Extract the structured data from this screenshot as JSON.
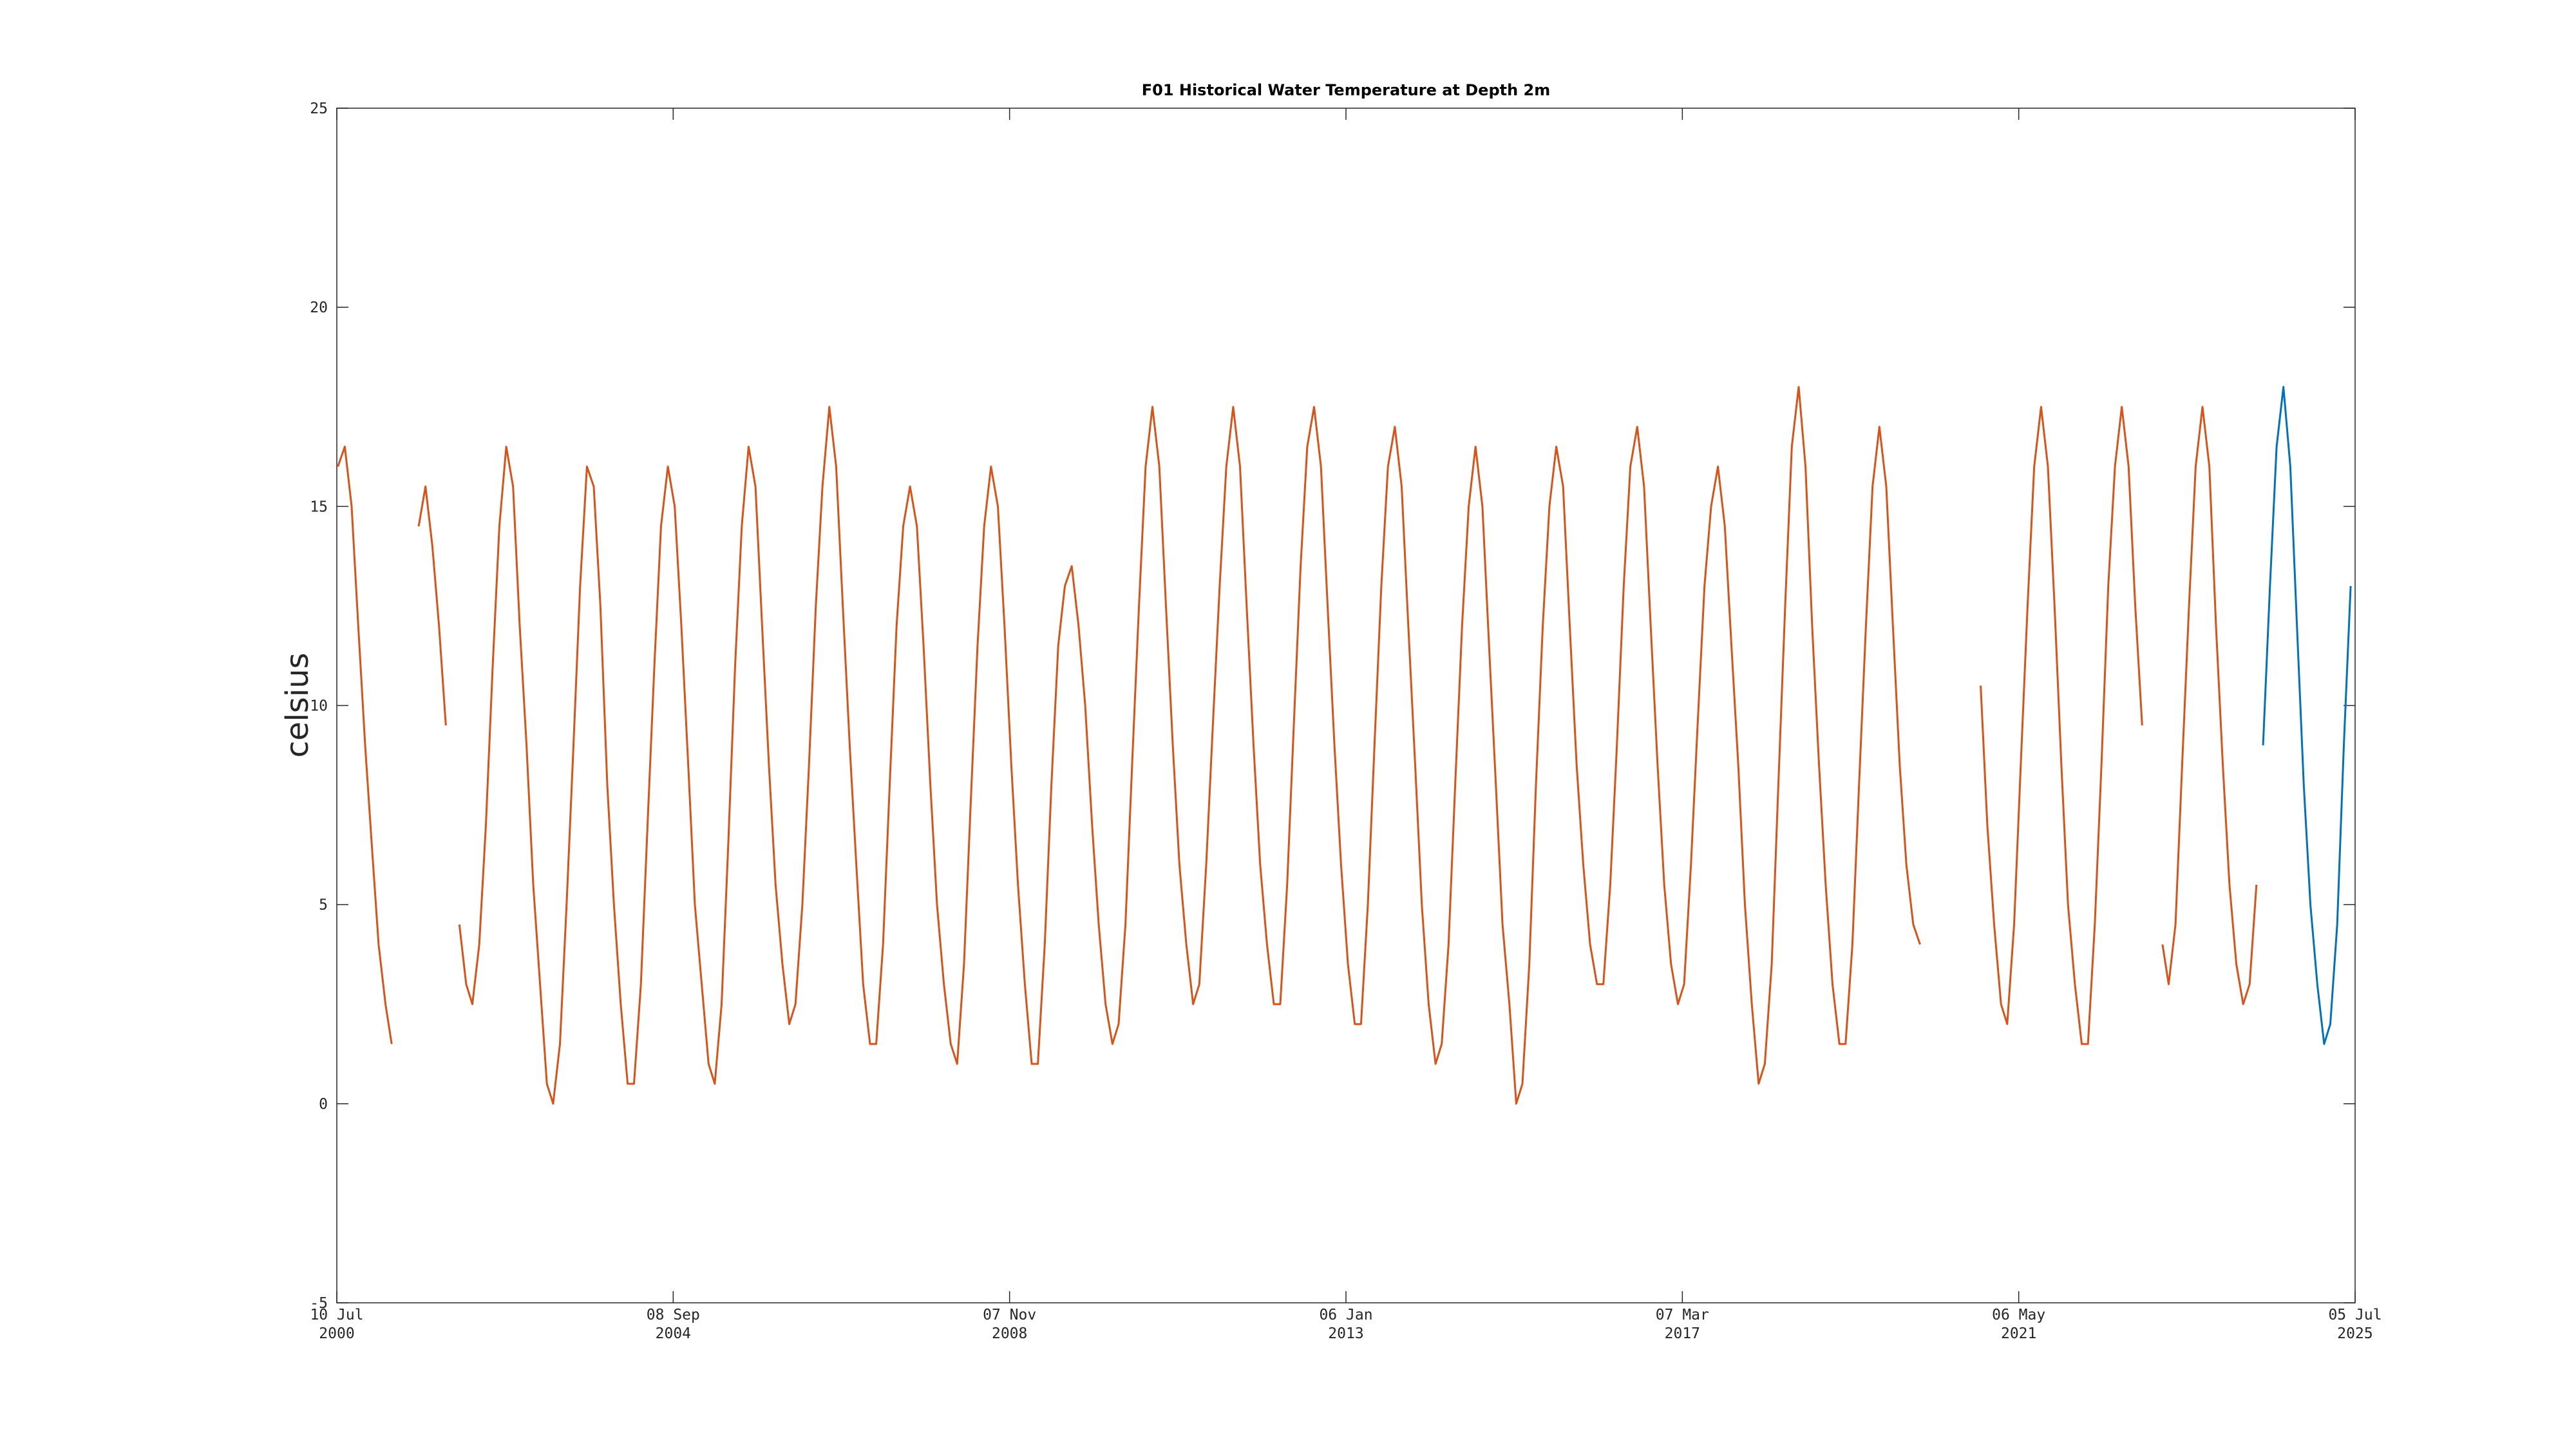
{
  "chart_data": {
    "type": "line",
    "title": "F01 Historical Water Temperature at Depth 2m",
    "ylabel": "celsius",
    "x": [
      "2000-07-15",
      "2000-08-15",
      "2000-09-15",
      "2000-10-15",
      "2000-11-15",
      "2000-12-15",
      "2001-01-15",
      "2001-02-15",
      "2001-03-15",
      "2001-04-15",
      "2001-05-15",
      "2001-06-15",
      "2001-07-15",
      "2001-08-15",
      "2001-09-15",
      "2001-10-15",
      "2001-11-15",
      "2001-12-15",
      "2002-01-15",
      "2002-02-15",
      "2002-03-15",
      "2002-04-15",
      "2002-05-15",
      "2002-06-15",
      "2002-07-15",
      "2002-08-15",
      "2002-09-15",
      "2002-10-15",
      "2002-11-15",
      "2002-12-15",
      "2003-01-15",
      "2003-02-15",
      "2003-03-15",
      "2003-04-15",
      "2003-05-15",
      "2003-06-15",
      "2003-07-15",
      "2003-08-15",
      "2003-09-15",
      "2003-10-15",
      "2003-11-15",
      "2003-12-15",
      "2004-01-15",
      "2004-02-15",
      "2004-03-15",
      "2004-04-15",
      "2004-05-15",
      "2004-06-15",
      "2004-07-15",
      "2004-08-15",
      "2004-09-15",
      "2004-10-15",
      "2004-11-15",
      "2004-12-15",
      "2005-01-15",
      "2005-02-15",
      "2005-03-15",
      "2005-04-15",
      "2005-05-15",
      "2005-06-15",
      "2005-07-15",
      "2005-08-15",
      "2005-09-15",
      "2005-10-15",
      "2005-11-15",
      "2005-12-15",
      "2006-01-15",
      "2006-02-15",
      "2006-03-15",
      "2006-04-15",
      "2006-05-15",
      "2006-06-15",
      "2006-07-15",
      "2006-08-15",
      "2006-09-15",
      "2006-10-15",
      "2006-11-15",
      "2006-12-15",
      "2007-01-15",
      "2007-02-15",
      "2007-03-15",
      "2007-04-15",
      "2007-05-15",
      "2007-06-15",
      "2007-07-15",
      "2007-08-15",
      "2007-09-15",
      "2007-10-15",
      "2007-11-15",
      "2007-12-15",
      "2008-01-15",
      "2008-02-15",
      "2008-03-15",
      "2008-04-15",
      "2008-05-15",
      "2008-06-15",
      "2008-07-15",
      "2008-08-15",
      "2008-09-15",
      "2008-10-15",
      "2008-11-15",
      "2008-12-15",
      "2009-01-15",
      "2009-02-15",
      "2009-03-15",
      "2009-04-15",
      "2009-05-15",
      "2009-06-15",
      "2009-07-15",
      "2009-08-15",
      "2009-09-15",
      "2009-10-15",
      "2009-11-15",
      "2009-12-15",
      "2010-01-15",
      "2010-02-15",
      "2010-03-15",
      "2010-04-15",
      "2010-05-15",
      "2010-06-15",
      "2010-07-15",
      "2010-08-15",
      "2010-09-15",
      "2010-10-15",
      "2010-11-15",
      "2010-12-15",
      "2011-01-15",
      "2011-02-15",
      "2011-03-15",
      "2011-04-15",
      "2011-05-15",
      "2011-06-15",
      "2011-07-15",
      "2011-08-15",
      "2011-09-15",
      "2011-10-15",
      "2011-11-15",
      "2011-12-15",
      "2012-01-15",
      "2012-02-15",
      "2012-03-15",
      "2012-04-15",
      "2012-05-15",
      "2012-06-15",
      "2012-07-15",
      "2012-08-15",
      "2012-09-15",
      "2012-10-15",
      "2012-11-15",
      "2012-12-15",
      "2013-01-15",
      "2013-02-15",
      "2013-03-15",
      "2013-04-15",
      "2013-05-15",
      "2013-06-15",
      "2013-07-15",
      "2013-08-15",
      "2013-09-15",
      "2013-10-15",
      "2013-11-15",
      "2013-12-15",
      "2014-01-15",
      "2014-02-15",
      "2014-03-15",
      "2014-04-15",
      "2014-05-15",
      "2014-06-15",
      "2014-07-15",
      "2014-08-15",
      "2014-09-15",
      "2014-10-15",
      "2014-11-15",
      "2014-12-15",
      "2015-01-15",
      "2015-02-15",
      "2015-03-15",
      "2015-04-15",
      "2015-05-15",
      "2015-06-15",
      "2015-07-15",
      "2015-08-15",
      "2015-09-15",
      "2015-10-15",
      "2015-11-15",
      "2015-12-15",
      "2016-01-15",
      "2016-02-15",
      "2016-03-15",
      "2016-04-15",
      "2016-05-15",
      "2016-06-15",
      "2016-07-15",
      "2016-08-15",
      "2016-09-15",
      "2016-10-15",
      "2016-11-15",
      "2016-12-15",
      "2017-01-15",
      "2017-02-15",
      "2017-03-15",
      "2017-04-15",
      "2017-05-15",
      "2017-06-15",
      "2017-07-15",
      "2017-08-15",
      "2017-09-15",
      "2017-10-15",
      "2017-11-15",
      "2017-12-15",
      "2018-01-15",
      "2018-02-15",
      "2018-03-15",
      "2018-04-15",
      "2018-05-15",
      "2018-06-15",
      "2018-07-15",
      "2018-08-15",
      "2018-09-15",
      "2018-10-15",
      "2018-11-15",
      "2018-12-15",
      "2019-01-15",
      "2019-02-15",
      "2019-03-15",
      "2019-04-15",
      "2019-05-15",
      "2019-06-15",
      "2019-07-15",
      "2019-08-15",
      "2019-09-15",
      "2019-10-15",
      "2019-11-15",
      "2019-12-15",
      "2020-01-15",
      "2020-02-15",
      "2020-03-15",
      "2020-04-15",
      "2020-05-15",
      "2020-06-15",
      "2020-07-15",
      "2020-08-15",
      "2020-09-15",
      "2020-10-15",
      "2020-11-15",
      "2020-12-15",
      "2021-01-15",
      "2021-02-15",
      "2021-03-15",
      "2021-04-15",
      "2021-05-15",
      "2021-06-15",
      "2021-07-15",
      "2021-08-15",
      "2021-09-15",
      "2021-10-15",
      "2021-11-15",
      "2021-12-15",
      "2022-01-15",
      "2022-02-15",
      "2022-03-15",
      "2022-04-15",
      "2022-05-15",
      "2022-06-15",
      "2022-07-15",
      "2022-08-15",
      "2022-09-15",
      "2022-10-15",
      "2022-11-15",
      "2022-12-15",
      "2023-01-15",
      "2023-02-15",
      "2023-03-15",
      "2023-04-15",
      "2023-05-15",
      "2023-06-15",
      "2023-07-15",
      "2023-08-15",
      "2023-09-15",
      "2023-10-15",
      "2023-11-15",
      "2023-12-15",
      "2024-01-15",
      "2024-02-15",
      "2024-03-15",
      "2024-04-15",
      "2024-05-15",
      "2024-06-15",
      "2024-07-15",
      "2024-08-15",
      "2024-09-15",
      "2024-10-15",
      "2024-11-15",
      "2024-12-15",
      "2025-01-15",
      "2025-02-15",
      "2025-03-15",
      "2025-04-15",
      "2025-05-15",
      "2025-06-15"
    ],
    "series": [
      {
        "color": "#D95319",
        "values": [
          16,
          16.5,
          15,
          12,
          9,
          6.5,
          4,
          2.5,
          1.5,
          null,
          null,
          null,
          14.5,
          15.5,
          14,
          12,
          9.5,
          null,
          4.5,
          3,
          2.5,
          4,
          7,
          11,
          14.5,
          16.5,
          15.5,
          12,
          9,
          5.5,
          3,
          0.5,
          0,
          1.5,
          5,
          9,
          13,
          16,
          15.5,
          12.5,
          8,
          5,
          2.5,
          0.5,
          0.5,
          3,
          7,
          11,
          14.5,
          16,
          15,
          12,
          8.5,
          5,
          3,
          1,
          0.5,
          2.5,
          6.5,
          11,
          14.5,
          16.5,
          15.5,
          12,
          8.5,
          5.5,
          3.5,
          2,
          2.5,
          5,
          8.5,
          12.5,
          15.5,
          17.5,
          16,
          12.5,
          9,
          6,
          3,
          1.5,
          1.5,
          4,
          8,
          12,
          14.5,
          15.5,
          14.5,
          11.5,
          8,
          5,
          3,
          1.5,
          1,
          3.5,
          7.5,
          11.5,
          14.5,
          16,
          15,
          12,
          8.5,
          5.5,
          3,
          1,
          1,
          4,
          8,
          11.5,
          13,
          13.5,
          12,
          10,
          7,
          4.5,
          2.5,
          1.5,
          2,
          4.5,
          8.5,
          12.5,
          16,
          17.5,
          16,
          12.5,
          9,
          6,
          4,
          2.5,
          3,
          6,
          9.5,
          13,
          16,
          17.5,
          16,
          12.5,
          9,
          6,
          4,
          2.5,
          2.5,
          5.5,
          9.5,
          13.5,
          16.5,
          17.5,
          16,
          12.5,
          9,
          6,
          3.5,
          2,
          2,
          5,
          9,
          13,
          16,
          17,
          15.5,
          12,
          8.5,
          5,
          2.5,
          1,
          1.5,
          4,
          8,
          12,
          15,
          16.5,
          15,
          11.5,
          8,
          4.5,
          2.5,
          0,
          0.5,
          3.5,
          8,
          12,
          15,
          16.5,
          15.5,
          12,
          8.5,
          6,
          4,
          3,
          3,
          5.5,
          9,
          13,
          16,
          17,
          15.5,
          12,
          8.5,
          5.5,
          3.5,
          2.5,
          3,
          6,
          9.5,
          13,
          15,
          16,
          14.5,
          11.5,
          8.5,
          5,
          2.5,
          0.5,
          1,
          3.5,
          8,
          12.5,
          16.5,
          18,
          16,
          12,
          8.5,
          5.5,
          3,
          1.5,
          1.5,
          4,
          8,
          12,
          15.5,
          17,
          15.5,
          12,
          8.5,
          6,
          4.5,
          4,
          null,
          null,
          null,
          null,
          null,
          null,
          null,
          null,
          10.5,
          7,
          4.5,
          2.5,
          2,
          4.5,
          8.5,
          12.5,
          16,
          17.5,
          16,
          12.5,
          8.5,
          5,
          3,
          1.5,
          1.5,
          4.5,
          8.5,
          13,
          16,
          17.5,
          16,
          12.5,
          9.5,
          null,
          null,
          4,
          3,
          4.5,
          8.5,
          12.5,
          16,
          17.5,
          16,
          12,
          8.5,
          5.5,
          3.5,
          2.5,
          3,
          5.5,
          null,
          null,
          null,
          null,
          null,
          null,
          null,
          null,
          null,
          null,
          null,
          null,
          null,
          null
        ]
      },
      {
        "color": "#0072BD",
        "values": [
          null,
          null,
          null,
          null,
          null,
          null,
          null,
          null,
          null,
          null,
          null,
          null,
          null,
          null,
          null,
          null,
          null,
          null,
          null,
          null,
          null,
          null,
          null,
          null,
          null,
          null,
          null,
          null,
          null,
          null,
          null,
          null,
          null,
          null,
          null,
          null,
          null,
          null,
          null,
          null,
          null,
          null,
          null,
          null,
          null,
          null,
          null,
          null,
          null,
          null,
          null,
          null,
          null,
          null,
          null,
          null,
          null,
          null,
          null,
          null,
          null,
          null,
          null,
          null,
          null,
          null,
          null,
          null,
          null,
          null,
          null,
          null,
          null,
          null,
          null,
          null,
          null,
          null,
          null,
          null,
          null,
          null,
          null,
          null,
          null,
          null,
          null,
          null,
          null,
          null,
          null,
          null,
          null,
          null,
          null,
          null,
          null,
          null,
          null,
          null,
          null,
          null,
          null,
          null,
          null,
          null,
          null,
          null,
          null,
          null,
          null,
          null,
          null,
          null,
          null,
          null,
          null,
          null,
          null,
          null,
          null,
          null,
          null,
          null,
          null,
          null,
          null,
          null,
          null,
          null,
          null,
          null,
          null,
          null,
          null,
          null,
          null,
          null,
          null,
          null,
          null,
          null,
          null,
          null,
          null,
          null,
          null,
          null,
          null,
          null,
          null,
          null,
          null,
          null,
          null,
          null,
          null,
          null,
          null,
          null,
          null,
          null,
          null,
          null,
          null,
          null,
          null,
          null,
          null,
          null,
          null,
          null,
          null,
          null,
          null,
          null,
          null,
          null,
          null,
          null,
          null,
          null,
          null,
          null,
          null,
          null,
          null,
          null,
          null,
          null,
          null,
          null,
          null,
          null,
          null,
          null,
          null,
          null,
          null,
          null,
          null,
          null,
          null,
          null,
          null,
          null,
          null,
          null,
          null,
          null,
          null,
          null,
          null,
          null,
          null,
          null,
          null,
          null,
          null,
          null,
          null,
          null,
          null,
          null,
          null,
          null,
          null,
          null,
          null,
          null,
          null,
          null,
          null,
          null,
          null,
          null,
          null,
          null,
          null,
          null,
          null,
          null,
          null,
          null,
          null,
          null,
          null,
          null,
          null,
          null,
          null,
          null,
          null,
          null,
          null,
          null,
          null,
          null,
          null,
          null,
          null,
          null,
          null,
          null,
          null,
          null,
          null,
          null,
          null,
          null,
          null,
          null,
          null,
          null,
          null,
          null,
          null,
          null,
          null,
          null,
          null,
          null,
          null,
          null,
          null,
          null,
          9,
          13,
          16.5,
          18,
          16,
          12,
          8,
          5,
          3,
          1.5,
          2,
          4.5,
          9,
          13
        ]
      }
    ],
    "xlim": [
      "2000-07-10",
      "2025-07-05"
    ],
    "xticks": [
      {
        "value": "2000-07-10",
        "label": [
          "10 Jul",
          "2000"
        ]
      },
      {
        "value": "2004-09-08",
        "label": [
          "08 Sep",
          "2004"
        ]
      },
      {
        "value": "2008-11-07",
        "label": [
          "07 Nov",
          "2008"
        ]
      },
      {
        "value": "2013-01-06",
        "label": [
          "06 Jan",
          "2013"
        ]
      },
      {
        "value": "2017-03-07",
        "label": [
          "07 Mar",
          "2017"
        ]
      },
      {
        "value": "2021-05-06",
        "label": [
          "06 May",
          "2021"
        ]
      },
      {
        "value": "2025-07-05",
        "label": [
          "05 Jul",
          "2025"
        ]
      }
    ],
    "ylim": [
      -5,
      25
    ],
    "yticks": [
      -5,
      0,
      5,
      10,
      15,
      20,
      25
    ],
    "grid": false
  }
}
